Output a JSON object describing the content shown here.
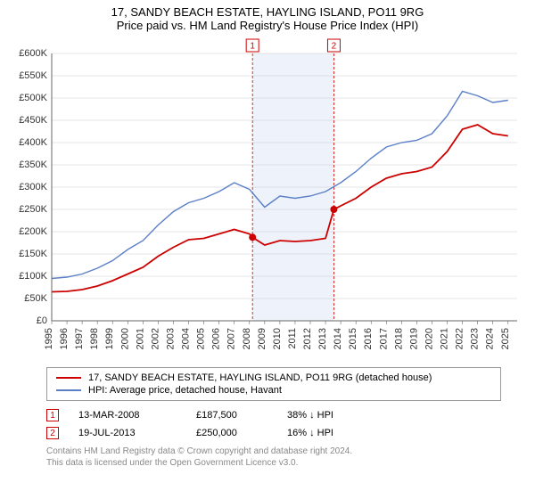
{
  "title": {
    "line1": "17, SANDY BEACH ESTATE, HAYLING ISLAND, PO11 9RG",
    "line2": "Price paid vs. HM Land Registry's House Price Index (HPI)"
  },
  "chart": {
    "background_color": "#ffffff",
    "plot_band_color": "#eef2fb",
    "grid_color": "#cccccc",
    "axis_color": "#666666",
    "y": {
      "min": 0,
      "max": 600000,
      "ticks": [
        0,
        50000,
        100000,
        150000,
        200000,
        250000,
        300000,
        350000,
        400000,
        450000,
        500000,
        550000,
        600000
      ],
      "labels": [
        "£0",
        "£50K",
        "£100K",
        "£150K",
        "£200K",
        "£250K",
        "£300K",
        "£350K",
        "£400K",
        "£450K",
        "£500K",
        "£550K",
        "£600K"
      ],
      "fontsize": 11
    },
    "x": {
      "min": 1995,
      "max": 2025.6,
      "ticks": [
        1995,
        1996,
        1997,
        1998,
        1999,
        2000,
        2001,
        2002,
        2003,
        2004,
        2005,
        2006,
        2007,
        2008,
        2009,
        2010,
        2011,
        2012,
        2013,
        2014,
        2015,
        2016,
        2017,
        2018,
        2019,
        2020,
        2021,
        2022,
        2023,
        2024,
        2025
      ],
      "fontsize": 11
    },
    "plot_band": {
      "from": 2008.2,
      "to": 2013.55
    },
    "sale_vlines": [
      {
        "x": 2008.2,
        "color": "#cc0000",
        "label": "1"
      },
      {
        "x": 2013.55,
        "color": "#cc0000",
        "label": "2"
      }
    ],
    "series": [
      {
        "name": "property",
        "color": "#cc0000",
        "width": 1.8,
        "points": [
          [
            1995,
            65000
          ],
          [
            1996,
            66000
          ],
          [
            1997,
            70000
          ],
          [
            1998,
            78000
          ],
          [
            1999,
            90000
          ],
          [
            2000,
            105000
          ],
          [
            2001,
            120000
          ],
          [
            2002,
            145000
          ],
          [
            2003,
            165000
          ],
          [
            2004,
            182000
          ],
          [
            2005,
            185000
          ],
          [
            2006,
            195000
          ],
          [
            2007,
            205000
          ],
          [
            2008,
            195000
          ],
          [
            2008.2,
            187500
          ],
          [
            2009,
            170000
          ],
          [
            2010,
            180000
          ],
          [
            2011,
            178000
          ],
          [
            2012,
            180000
          ],
          [
            2013,
            185000
          ],
          [
            2013.55,
            250000
          ],
          [
            2014,
            258000
          ],
          [
            2015,
            275000
          ],
          [
            2016,
            300000
          ],
          [
            2017,
            320000
          ],
          [
            2018,
            330000
          ],
          [
            2019,
            335000
          ],
          [
            2020,
            345000
          ],
          [
            2021,
            380000
          ],
          [
            2022,
            430000
          ],
          [
            2023,
            440000
          ],
          [
            2024,
            420000
          ],
          [
            2025,
            415000
          ]
        ]
      },
      {
        "name": "hpi",
        "color": "#5b7fc7",
        "width": 1.4,
        "points": [
          [
            1995,
            95000
          ],
          [
            1996,
            98000
          ],
          [
            1997,
            105000
          ],
          [
            1998,
            118000
          ],
          [
            1999,
            135000
          ],
          [
            2000,
            160000
          ],
          [
            2001,
            180000
          ],
          [
            2002,
            215000
          ],
          [
            2003,
            245000
          ],
          [
            2004,
            265000
          ],
          [
            2005,
            275000
          ],
          [
            2006,
            290000
          ],
          [
            2007,
            310000
          ],
          [
            2008,
            295000
          ],
          [
            2009,
            255000
          ],
          [
            2010,
            280000
          ],
          [
            2011,
            275000
          ],
          [
            2012,
            280000
          ],
          [
            2013,
            290000
          ],
          [
            2014,
            310000
          ],
          [
            2015,
            335000
          ],
          [
            2016,
            365000
          ],
          [
            2017,
            390000
          ],
          [
            2018,
            400000
          ],
          [
            2019,
            405000
          ],
          [
            2020,
            420000
          ],
          [
            2021,
            460000
          ],
          [
            2022,
            515000
          ],
          [
            2023,
            505000
          ],
          [
            2024,
            490000
          ],
          [
            2025,
            495000
          ]
        ]
      }
    ],
    "sale_markers": [
      {
        "x": 2008.2,
        "y": 187500,
        "color": "#cc0000"
      },
      {
        "x": 2013.55,
        "y": 250000,
        "color": "#cc0000"
      }
    ]
  },
  "legend": {
    "items": [
      {
        "color": "#cc0000",
        "label": "17, SANDY BEACH ESTATE, HAYLING ISLAND, PO11 9RG (detached house)"
      },
      {
        "color": "#5b7fc7",
        "label": "HPI: Average price, detached house, Havant"
      }
    ]
  },
  "sales": [
    {
      "num": "1",
      "color": "#cc0000",
      "date": "13-MAR-2008",
      "price": "£187,500",
      "diff": "38% ↓ HPI"
    },
    {
      "num": "2",
      "color": "#cc0000",
      "date": "19-JUL-2013",
      "price": "£250,000",
      "diff": "16% ↓ HPI"
    }
  ],
  "footnote": {
    "line1": "Contains HM Land Registry data © Crown copyright and database right 2024.",
    "line2": "This data is licensed under the Open Government Licence v3.0."
  }
}
